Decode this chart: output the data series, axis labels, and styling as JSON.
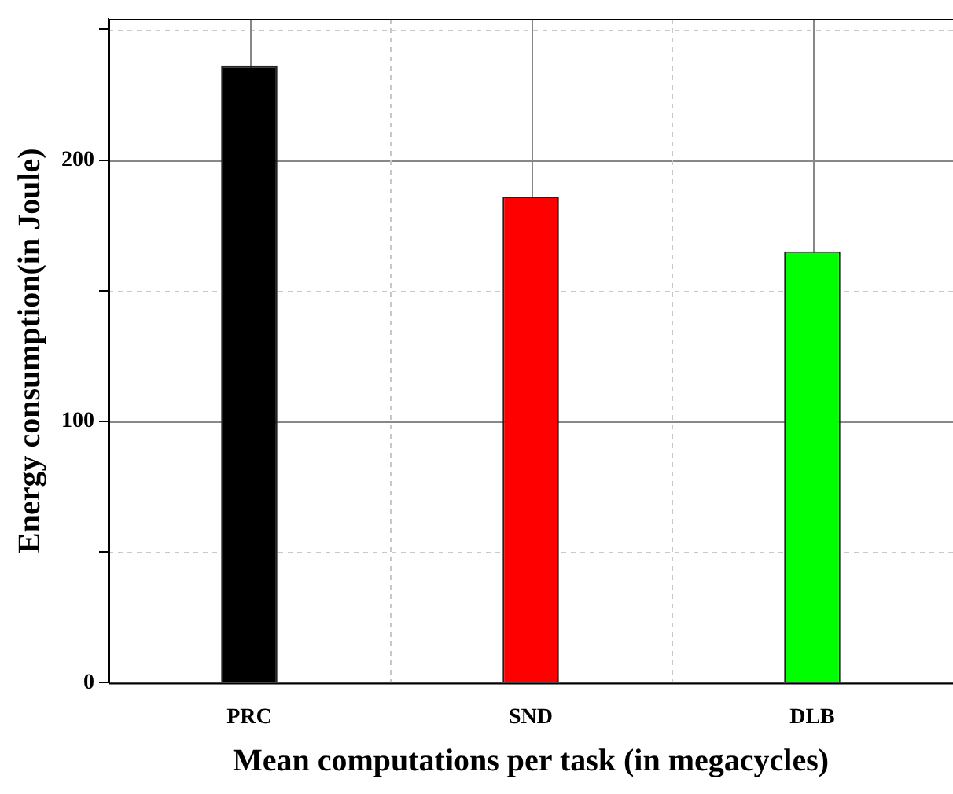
{
  "chart_data": {
    "type": "bar",
    "xlabel": "Mean computations per task (in megacycles)",
    "ylabel": "Energy consumption(in Joule)",
    "categories": [
      "PRC",
      "SND",
      "DLB"
    ],
    "values": [
      236,
      186,
      165
    ],
    "colors": [
      "#000000",
      "#ff0000",
      "#00ff00"
    ],
    "ylim": [
      0,
      254
    ],
    "yticks": [
      0,
      {
        "value": 50,
        "label": null
      },
      100,
      {
        "value": 150,
        "label": null
      },
      200,
      {
        "value": 250,
        "label": null
      }
    ],
    "grid": true,
    "legend": false
  }
}
